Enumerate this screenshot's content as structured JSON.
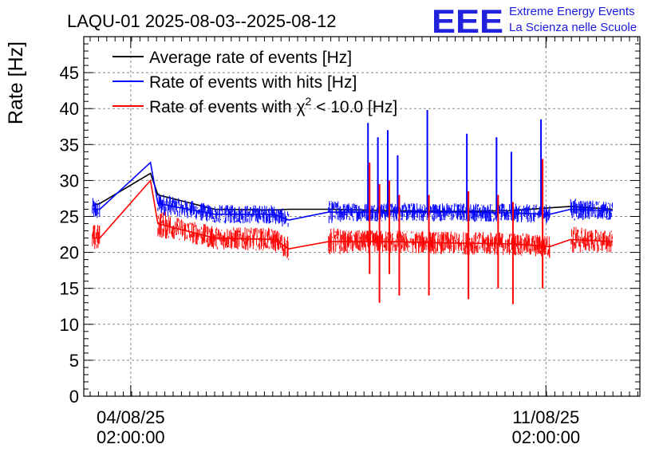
{
  "header": {
    "title": "LAQU-01 2025-08-03--2025-08-12",
    "logo_text": "EEE",
    "org_line1": "Extreme Energy Events",
    "org_line2": "La Scienza nelle Scuole"
  },
  "legend": {
    "avg": "Average rate of events [Hz]",
    "hits": "Rate of events with hits [Hz]",
    "chi_prefix": "Rate of events with ",
    "chi_symbol": "χ",
    "chi_exp": "2",
    "chi_suffix": " < 10.0 [Hz]"
  },
  "chart_data": {
    "type": "line",
    "title": "LAQU-01 2025-08-03--2025-08-12",
    "ylabel": "Rate [Hz]",
    "xlabel": "",
    "ylim": [
      0,
      50
    ],
    "yticks": [
      0,
      5,
      10,
      15,
      20,
      25,
      30,
      35,
      40,
      45
    ],
    "xlim": [
      "2025-08-03 07:00",
      "2025-08-12 16:00"
    ],
    "xtick_labels": [
      {
        "date": "04/08/25",
        "time": "02:00:00"
      },
      {
        "date": "11/08/25",
        "time": "02:00:00"
      }
    ],
    "grid": true,
    "legend_position": "top-left",
    "series": [
      {
        "name": "Average rate of events [Hz]",
        "color": "#000000",
        "x": [
          "2025-08-03 10:30",
          "2025-08-03 13:30",
          "2025-08-04 10:00",
          "2025-08-04 13:00",
          "2025-08-05 12:00",
          "2025-08-06 12:00",
          "2025-08-06 18:00",
          "2025-08-07 10:00",
          "2025-08-08 12:00",
          "2025-08-09 12:00",
          "2025-08-10 12:00",
          "2025-08-11 03:30",
          "2025-08-11 12:00",
          "2025-08-12 05:00"
        ],
        "y": [
          26.5,
          26.8,
          31.0,
          28.0,
          26.0,
          25.9,
          26.0,
          26.0,
          25.8,
          25.7,
          25.8,
          26.2,
          26.4,
          26.0
        ]
      },
      {
        "name": "Rate of events with hits [Hz]",
        "color": "#0000ff",
        "x": [
          "2025-08-03 10:30",
          "2025-08-03 13:30",
          "2025-08-04 10:00",
          "2025-08-04 13:00",
          "2025-08-05 12:00",
          "2025-08-06 12:00",
          "2025-08-06 18:00",
          "2025-08-07 10:00",
          "2025-08-08 12:00",
          "2025-08-09 12:00",
          "2025-08-10 12:00",
          "2025-08-11 03:30",
          "2025-08-11 12:00",
          "2025-08-12 05:00"
        ],
        "y": [
          26.0,
          26.0,
          32.5,
          26.8,
          25.3,
          25.3,
          24.5,
          25.6,
          25.6,
          25.6,
          25.5,
          25.3,
          26.0,
          25.8
        ]
      },
      {
        "name": "Rate of events with χ2 < 10.0 [Hz]",
        "color": "#ff0000",
        "x": [
          "2025-08-03 10:30",
          "2025-08-03 13:30",
          "2025-08-04 10:00",
          "2025-08-04 13:00",
          "2025-08-05 12:00",
          "2025-08-06 12:00",
          "2025-08-06 18:00",
          "2025-08-07 10:00",
          "2025-08-08 12:00",
          "2025-08-09 12:00",
          "2025-08-10 12:00",
          "2025-08-11 03:30",
          "2025-08-11 12:00",
          "2025-08-12 05:00"
        ],
        "y": [
          22.0,
          22.0,
          30.0,
          24.0,
          22.0,
          21.8,
          20.5,
          21.5,
          21.5,
          21.3,
          21.2,
          20.8,
          21.8,
          21.5
        ]
      }
    ],
    "spikes": [
      {
        "x": "2025-08-08 02:00",
        "hits_max": 38.0,
        "chi_max": 32.5,
        "chi_min": 17.0
      },
      {
        "x": "2025-08-08 06:00",
        "hits_max": 36.0,
        "chi_max": 29.5,
        "chi_min": 13.0
      },
      {
        "x": "2025-08-08 10:00",
        "hits_max": 37.0,
        "chi_max": 30.0,
        "chi_min": 17.0
      },
      {
        "x": "2025-08-08 14:00",
        "hits_max": 33.5,
        "chi_max": 28.0,
        "chi_min": 14.0
      },
      {
        "x": "2025-08-09 02:00",
        "hits_max": 39.8,
        "chi_max": 28.0,
        "chi_min": 14.0
      },
      {
        "x": "2025-08-09 18:00",
        "hits_max": 36.5,
        "chi_max": 28.5,
        "chi_min": 13.5
      },
      {
        "x": "2025-08-10 06:00",
        "hits_max": 36.0,
        "chi_max": 28.0,
        "chi_min": 15.0
      },
      {
        "x": "2025-08-10 12:00",
        "hits_max": 34.0,
        "chi_max": 27.0,
        "chi_min": 12.8
      },
      {
        "x": "2025-08-11 00:00",
        "hits_max": 38.5,
        "chi_max": 33.0,
        "chi_min": 15.0
      }
    ]
  }
}
